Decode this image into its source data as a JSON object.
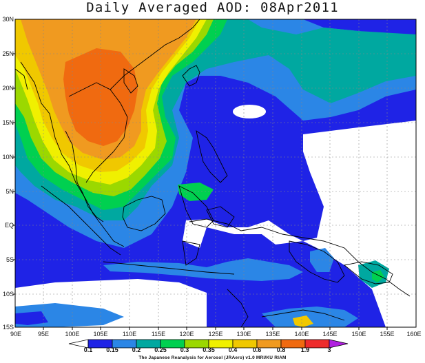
{
  "title": "Daily Averaged AOD: 08Apr2011",
  "latitude_labels": [
    "30N",
    "25N",
    "20N",
    "15N",
    "10N",
    "5N",
    "EQ",
    "5S",
    "10S",
    "15S"
  ],
  "longitude_labels": [
    "90E",
    "95E",
    "100E",
    "105E",
    "110E",
    "115E",
    "120E",
    "125E",
    "130E",
    "135E",
    "140E",
    "145E",
    "150E",
    "155E",
    "160E"
  ],
  "colorbar": {
    "levels": [
      "0.1",
      "0.15",
      "0.2",
      "0.25",
      "0.3",
      "0.35",
      "0.4",
      "0.6",
      "0.8",
      "1.9",
      "3"
    ],
    "colors": [
      "#ffffff",
      "#1f23e6",
      "#2b86e6",
      "#00a8a0",
      "#00d050",
      "#9bd800",
      "#f0f000",
      "#f0c800",
      "#f09a20",
      "#f06a10",
      "#ee2c2c",
      "#b020e0"
    ]
  },
  "credit": "The Japanese Reanalysis for Aerosol (JRAero) v1.0 MRI/KU RIAM"
}
